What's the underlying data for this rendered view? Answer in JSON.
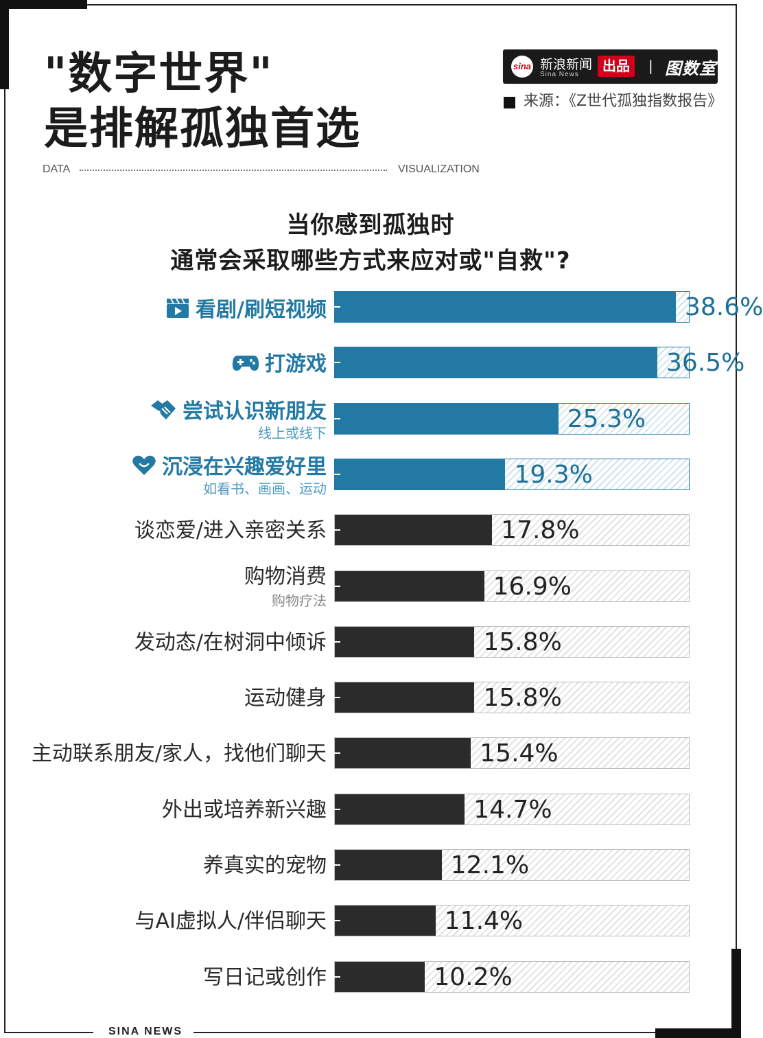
{
  "header": {
    "title_line1": "\"数字世界\"",
    "title_line2": "是排解孤独首选",
    "data_label": "DATA",
    "viz_label": "VISUALIZATION"
  },
  "brand": {
    "sina_logo": "sina",
    "sina_cn": "新浪新闻",
    "sina_en": "Sina News",
    "chupin": "出品",
    "separator": "|",
    "tushushi": "图数室"
  },
  "source": {
    "text": "来源：《Z世代孤独指数报告》"
  },
  "footer": {
    "text": "SINA NEWS"
  },
  "colors": {
    "highlight": "#2279a3",
    "dark_bar": "#2b2b2b",
    "accent": "#d0021b"
  },
  "chart_data": {
    "type": "bar",
    "orientation": "horizontal",
    "title_line1": "当你感到孤独时",
    "title_line2": "通常会采取哪些方式来应对或\"自救\"?",
    "unit": "%",
    "xlim": [
      0,
      100
    ],
    "grid": false,
    "items": [
      {
        "label": "看剧/刷短视频",
        "sub": "",
        "value": 38.6,
        "display": "38.6%",
        "highlight": true,
        "icon": "clapper-icon"
      },
      {
        "label": "打游戏",
        "sub": "",
        "value": 36.5,
        "display": "36.5%",
        "highlight": true,
        "icon": "gamepad-icon"
      },
      {
        "label": "尝试认识新朋友",
        "sub": "线上或线下",
        "value": 25.3,
        "display": "25.3%",
        "highlight": true,
        "icon": "handshake-icon"
      },
      {
        "label": "沉浸在兴趣爱好里",
        "sub": "如看书、画画、运动",
        "value": 19.3,
        "display": "19.3%",
        "highlight": true,
        "icon": "heart-icon"
      },
      {
        "label": "谈恋爱/进入亲密关系",
        "sub": "",
        "value": 17.8,
        "display": "17.8%",
        "highlight": false,
        "icon": ""
      },
      {
        "label": "购物消费",
        "sub": "购物疗法",
        "value": 16.9,
        "display": "16.9%",
        "highlight": false,
        "icon": ""
      },
      {
        "label": "发动态/在树洞中倾诉",
        "sub": "",
        "value": 15.8,
        "display": "15.8%",
        "highlight": false,
        "icon": ""
      },
      {
        "label": "运动健身",
        "sub": "",
        "value": 15.8,
        "display": "15.8%",
        "highlight": false,
        "icon": ""
      },
      {
        "label": "主动联系朋友/家人，找他们聊天",
        "sub": "",
        "value": 15.4,
        "display": "15.4%",
        "highlight": false,
        "icon": ""
      },
      {
        "label": "外出或培养新兴趣",
        "sub": "",
        "value": 14.7,
        "display": "14.7%",
        "highlight": false,
        "icon": ""
      },
      {
        "label": "养真实的宠物",
        "sub": "",
        "value": 12.1,
        "display": "12.1%",
        "highlight": false,
        "icon": ""
      },
      {
        "label": "与AI虚拟人/伴侣聊天",
        "sub": "",
        "value": 11.4,
        "display": "11.4%",
        "highlight": false,
        "icon": ""
      },
      {
        "label": "写日记或创作",
        "sub": "",
        "value": 10.2,
        "display": "10.2%",
        "highlight": false,
        "icon": ""
      }
    ]
  }
}
